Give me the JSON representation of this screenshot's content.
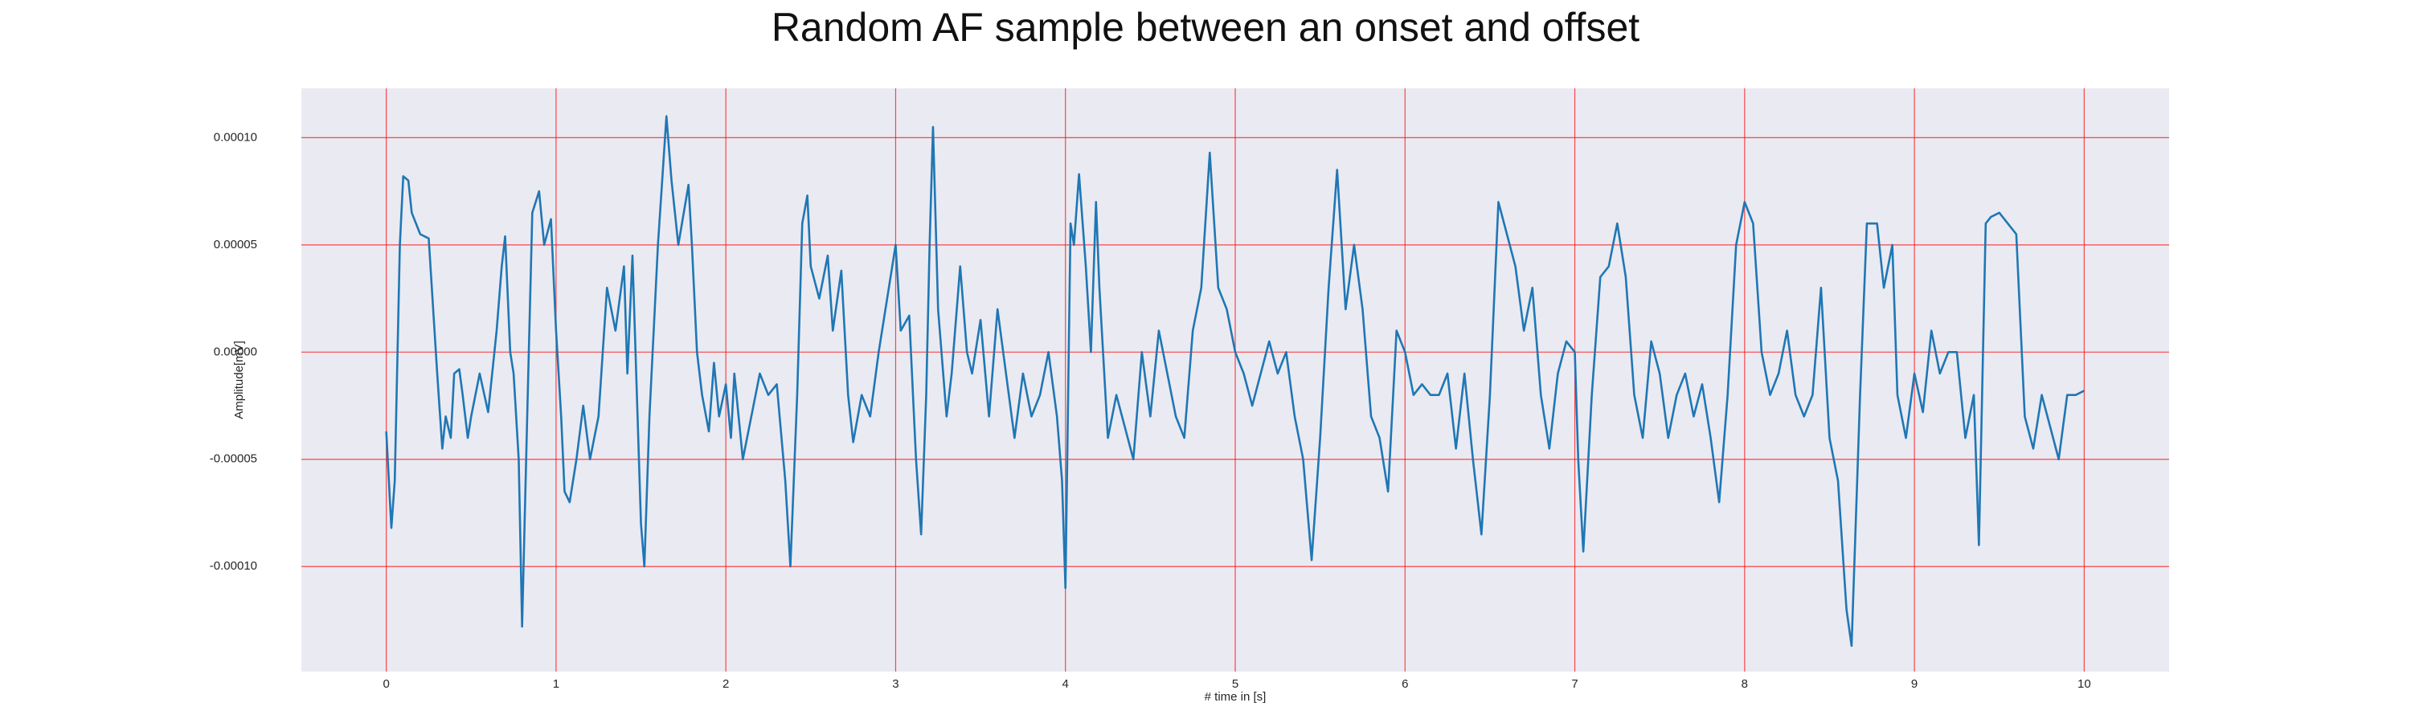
{
  "chart_data": {
    "type": "line",
    "title": "Random AF sample between an onset and offset",
    "x_label": "# time in [s]",
    "y_label": "Amplitude[mV]",
    "xlim": [
      -0.5,
      10.5
    ],
    "ylim": [
      -0.000149,
      0.000123
    ],
    "xticks": [
      0,
      1,
      2,
      3,
      4,
      5,
      6,
      7,
      8,
      9,
      10
    ],
    "yticks": [
      {
        "value": -0.0001,
        "label": "-0.00010"
      },
      {
        "value": -5e-05,
        "label": "-0.00005"
      },
      {
        "value": 0,
        "label": "0.00000"
      },
      {
        "value": 5e-05,
        "label": "0.00005"
      },
      {
        "value": 0.0001,
        "label": "0.00010"
      }
    ],
    "grid": true,
    "grid_color": "#ff0000",
    "background": "#eaeaf2",
    "series": [
      {
        "color": "#1f77b4",
        "x": [
          0,
          0.03,
          0.05,
          0.08,
          0.1,
          0.13,
          0.15,
          0.2,
          0.25,
          0.3,
          0.33,
          0.35,
          0.38,
          0.4,
          0.43,
          0.45,
          0.48,
          0.5,
          0.55,
          0.6,
          0.65,
          0.68,
          0.7,
          0.73,
          0.75,
          0.78,
          0.8,
          0.83,
          0.86,
          0.9,
          0.93,
          0.97,
          1.0,
          1.03,
          1.05,
          1.08,
          1.12,
          1.16,
          1.2,
          1.25,
          1.3,
          1.35,
          1.4,
          1.42,
          1.45,
          1.5,
          1.52,
          1.55,
          1.6,
          1.65,
          1.68,
          1.72,
          1.78,
          1.8,
          1.83,
          1.86,
          1.9,
          1.93,
          1.96,
          2.0,
          2.03,
          2.05,
          2.1,
          2.15,
          2.2,
          2.25,
          2.3,
          2.35,
          2.38,
          2.42,
          2.45,
          2.48,
          2.5,
          2.55,
          2.6,
          2.63,
          2.68,
          2.72,
          2.75,
          2.8,
          2.85,
          2.9,
          2.95,
          3.0,
          3.03,
          3.08,
          3.12,
          3.15,
          3.18,
          3.2,
          3.22,
          3.25,
          3.3,
          3.33,
          3.38,
          3.42,
          3.45,
          3.5,
          3.55,
          3.6,
          3.65,
          3.7,
          3.75,
          3.8,
          3.85,
          3.9,
          3.95,
          3.98,
          4.0,
          4.03,
          4.05,
          4.08,
          4.12,
          4.15,
          4.18,
          4.2,
          4.25,
          4.3,
          4.35,
          4.4,
          4.45,
          4.5,
          4.55,
          4.6,
          4.65,
          4.7,
          4.75,
          4.8,
          4.85,
          4.9,
          4.95,
          5.0,
          5.05,
          5.1,
          5.15,
          5.2,
          5.25,
          5.3,
          5.35,
          5.4,
          5.45,
          5.5,
          5.55,
          5.6,
          5.65,
          5.7,
          5.75,
          5.8,
          5.85,
          5.9,
          5.95,
          6.0,
          6.05,
          6.1,
          6.15,
          6.2,
          6.25,
          6.3,
          6.35,
          6.4,
          6.45,
          6.5,
          6.55,
          6.6,
          6.65,
          6.7,
          6.75,
          6.8,
          6.85,
          6.9,
          6.95,
          7.0,
          7.02,
          7.05,
          7.1,
          7.15,
          7.2,
          7.25,
          7.3,
          7.35,
          7.4,
          7.45,
          7.5,
          7.55,
          7.6,
          7.65,
          7.7,
          7.75,
          7.8,
          7.85,
          7.9,
          7.95,
          8.0,
          8.05,
          8.1,
          8.15,
          8.2,
          8.25,
          8.3,
          8.35,
          8.4,
          8.45,
          8.5,
          8.55,
          8.6,
          8.63,
          8.68,
          8.72,
          8.78,
          8.82,
          8.87,
          8.9,
          8.95,
          9.0,
          9.05,
          9.1,
          9.15,
          9.2,
          9.25,
          9.3,
          9.35,
          9.38,
          9.42,
          9.45,
          9.5,
          9.55,
          9.6,
          9.65,
          9.7,
          9.75,
          9.8,
          9.85,
          9.9,
          9.95,
          10.0
        ],
        "values": [
          -3.7e-05,
          -8.2e-05,
          -6e-05,
          5e-05,
          8.2e-05,
          8e-05,
          6.5e-05,
          5.5e-05,
          5.3e-05,
          -1e-05,
          -4.5e-05,
          -3e-05,
          -4e-05,
          -1e-05,
          -8e-06,
          -2e-05,
          -4e-05,
          -3e-05,
          -1e-05,
          -2.8e-05,
          1e-05,
          4e-05,
          5.4e-05,
          0,
          -1e-05,
          -5e-05,
          -0.000128,
          -3e-05,
          6.5e-05,
          7.5e-05,
          5e-05,
          6.2e-05,
          1e-05,
          -3e-05,
          -6.5e-05,
          -7e-05,
          -5e-05,
          -2.5e-05,
          -5e-05,
          -3e-05,
          3e-05,
          1e-05,
          4e-05,
          -1e-05,
          4.5e-05,
          -8e-05,
          -0.0001,
          -3e-05,
          5e-05,
          0.00011,
          8e-05,
          5e-05,
          7.8e-05,
          5e-05,
          0,
          -2e-05,
          -3.7e-05,
          -5e-06,
          -3e-05,
          -1.5e-05,
          -4e-05,
          -1e-05,
          -5e-05,
          -3e-05,
          -1e-05,
          -2e-05,
          -1.5e-05,
          -6e-05,
          -0.0001,
          -2e-05,
          6e-05,
          7.3e-05,
          4e-05,
          2.5e-05,
          4.5e-05,
          1e-05,
          3.8e-05,
          -2e-05,
          -4.2e-05,
          -2e-05,
          -3e-05,
          0,
          2.5e-05,
          5e-05,
          1e-05,
          1.7e-05,
          -5e-05,
          -8.5e-05,
          -2e-05,
          5e-05,
          0.000105,
          2e-05,
          -3e-05,
          -1e-05,
          4e-05,
          0,
          -1e-05,
          1.5e-05,
          -3e-05,
          2e-05,
          -1e-05,
          -4e-05,
          -1e-05,
          -3e-05,
          -2e-05,
          0,
          -3e-05,
          -6e-05,
          -0.00011,
          6e-05,
          5e-05,
          8.3e-05,
          4e-05,
          0,
          7e-05,
          3e-05,
          -4e-05,
          -2e-05,
          -3.5e-05,
          -5e-05,
          0,
          -3e-05,
          1e-05,
          -1e-05,
          -3e-05,
          -4e-05,
          1e-05,
          3e-05,
          9.3e-05,
          3e-05,
          2e-05,
          0,
          -1e-05,
          -2.5e-05,
          -1e-05,
          5e-06,
          -1e-05,
          0,
          -3e-05,
          -5e-05,
          -9.7e-05,
          -4e-05,
          3e-05,
          8.5e-05,
          2e-05,
          5e-05,
          2e-05,
          -3e-05,
          -4e-05,
          -6.5e-05,
          1e-05,
          0,
          -2e-05,
          -1.5e-05,
          -2e-05,
          -2e-05,
          -1e-05,
          -4.5e-05,
          -1e-05,
          -5e-05,
          -8.5e-05,
          -2e-05,
          7e-05,
          5.5e-05,
          4e-05,
          1e-05,
          3e-05,
          -2e-05,
          -4.5e-05,
          -1e-05,
          5e-06,
          0,
          -5e-05,
          -9.3e-05,
          -2e-05,
          3.5e-05,
          4e-05,
          6e-05,
          3.5e-05,
          -2e-05,
          -4e-05,
          5e-06,
          -1e-05,
          -4e-05,
          -2e-05,
          -1e-05,
          -3e-05,
          -1.5e-05,
          -4e-05,
          -7e-05,
          -2e-05,
          5e-05,
          7e-05,
          6e-05,
          0,
          -2e-05,
          -1e-05,
          1e-05,
          -2e-05,
          -3e-05,
          -2e-05,
          3e-05,
          -4e-05,
          -6e-05,
          -0.00012,
          -0.000137,
          -2e-05,
          6e-05,
          6e-05,
          3e-05,
          5e-05,
          -2e-05,
          -4e-05,
          -1e-05,
          -2.8e-05,
          1e-05,
          -1e-05,
          0,
          0,
          -4e-05,
          -2e-05,
          -9e-05,
          6e-05,
          6.3e-05,
          6.5e-05,
          6e-05,
          5.5e-05,
          -3e-05,
          -4.5e-05,
          -2e-05,
          -3.5e-05,
          -5e-05,
          -2e-05,
          -2e-05,
          -1.8e-05
        ]
      }
    ]
  }
}
